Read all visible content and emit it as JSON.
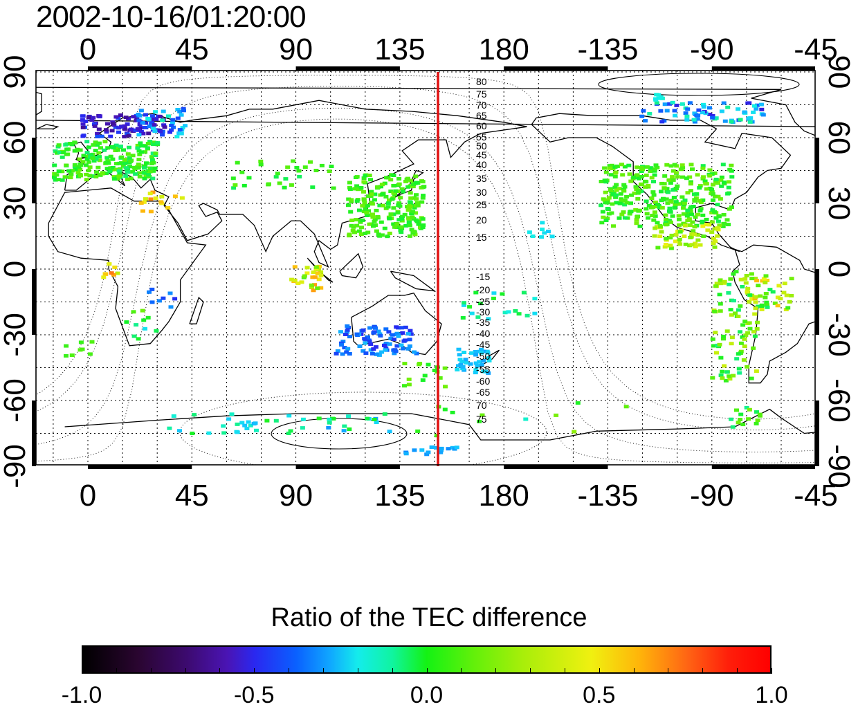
{
  "timestamp": "2002-10-16/01:20:00",
  "map": {
    "top_axis_labels": [
      "0",
      "45",
      "90",
      "135",
      "180",
      "-135",
      "-90",
      "-45"
    ],
    "bottom_axis_labels": [
      "0",
      "45",
      "90",
      "135",
      "180",
      "-135",
      "-90",
      "-45"
    ],
    "left_axis_labels": [
      "90",
      "60",
      "30",
      "0",
      "-30",
      "-60",
      "-90"
    ],
    "right_axis_labels": [
      "90",
      "60",
      "30",
      "0",
      "-30",
      "-60",
      "-90"
    ],
    "meridian_marker_color": "#e01010",
    "north_contour_labels": [
      "80",
      "75",
      "70",
      "65",
      "60",
      "55",
      "50",
      "45",
      "40",
      "35",
      "30",
      "25",
      "20",
      "15"
    ],
    "south_contour_labels": [
      "-15",
      "-20",
      "-25",
      "-30",
      "-35",
      "-40",
      "-45",
      "-50",
      "-55",
      "-60",
      "-65",
      "70",
      "75"
    ]
  },
  "colorbar": {
    "title": "Ratio of the TEC difference",
    "tick_labels": [
      "-1.0",
      "-0.5",
      "0.0",
      "0.5",
      "1.0"
    ],
    "range": [
      -1.0,
      1.0
    ]
  }
}
